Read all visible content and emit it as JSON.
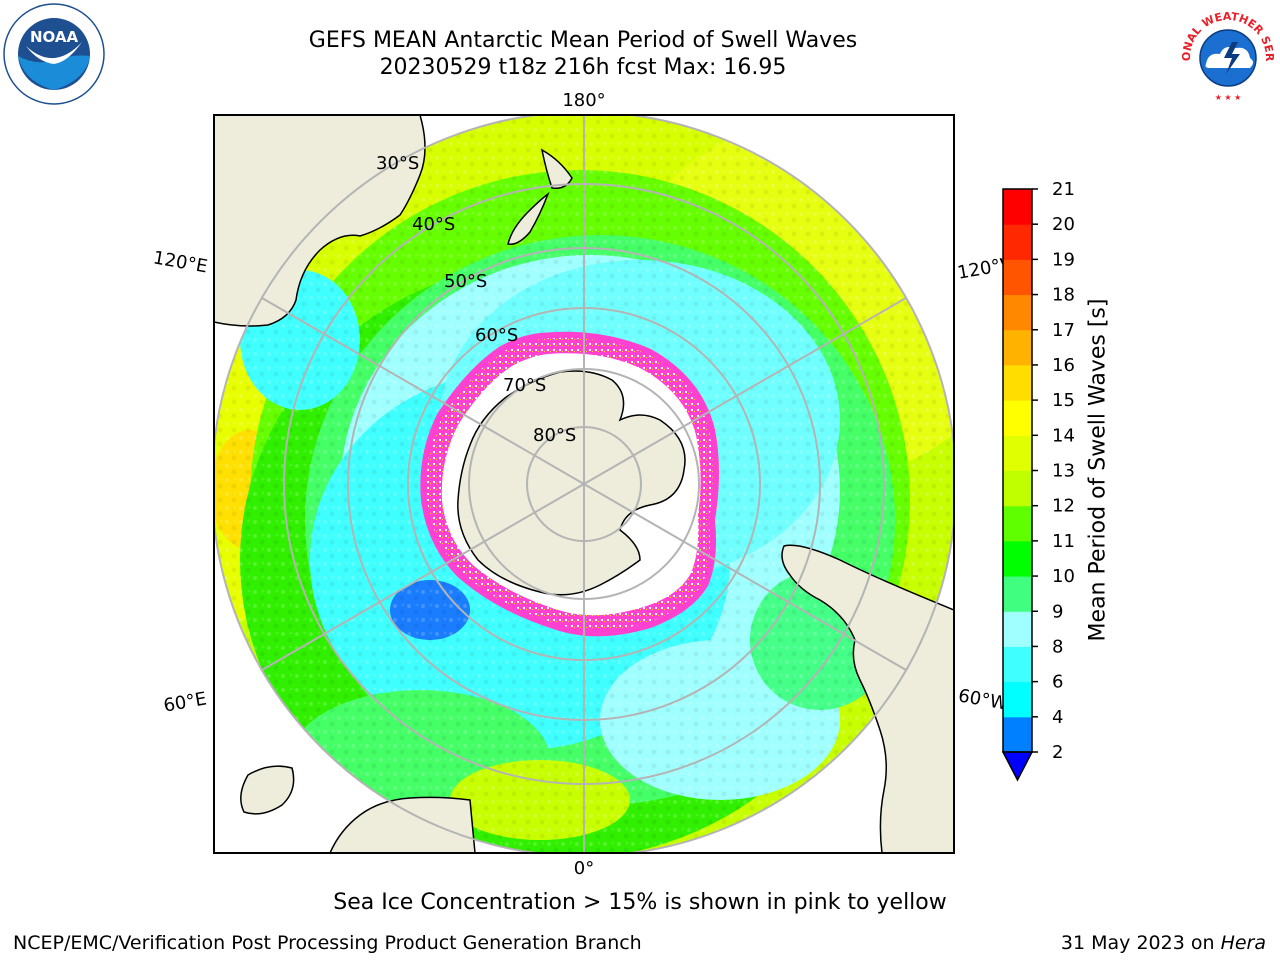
{
  "title": {
    "line1": "GEFS MEAN Antarctic Mean Period of Swell Waves",
    "line2": "20230529 t18z 216h fcst   Max: 16.95"
  },
  "map": {
    "projection": "south-polar-stereographic",
    "longitude_labels": [
      {
        "text": "180°"
      },
      {
        "text": "120°E"
      },
      {
        "text": "120°W"
      },
      {
        "text": "60°E"
      },
      {
        "text": "60°W"
      },
      {
        "text": "0°"
      }
    ],
    "latitude_labels": [
      "30°S",
      "40°S",
      "50°S",
      "60°S",
      "70°S",
      "80°S"
    ],
    "colors": {
      "land": "#eeecdb",
      "grid": "#b4b4b4",
      "sea_ice": "#ff40d0",
      "ice_interior": "#ffffff"
    }
  },
  "colorbar": {
    "label": "Mean Period of Swell Waves [s]",
    "ticks": [
      "2",
      "4",
      "6",
      "8",
      "9",
      "10",
      "11",
      "12",
      "13",
      "14",
      "15",
      "16",
      "17",
      "18",
      "19",
      "20",
      "21"
    ],
    "colors": [
      "#0020ff",
      "#0080ff",
      "#00ffff",
      "#40ffff",
      "#a0ffff",
      "#40ff80",
      "#00ff00",
      "#60ff00",
      "#c0ff00",
      "#e0ff00",
      "#ffff00",
      "#ffdd00",
      "#ffb300",
      "#ff8800",
      "#ff5500",
      "#ff2800",
      "#ff0000"
    ],
    "under_color": "#0000ff"
  },
  "logos": {
    "noaa": {
      "text": "NOAA",
      "ring_text": "NATIONAL OCEANIC AND ATMOSPHERIC ADMINISTRATION · U.S. DEPARTMENT OF COMMERCE"
    },
    "nws": {
      "ring_text": "NATIONAL WEATHER SERVICE"
    }
  },
  "notes": {
    "sea_ice": "Sea Ice Concentration > 15% is shown in pink to yellow"
  },
  "footer": {
    "left": "NCEP/EMC/Verification Post Processing Product Generation Branch",
    "date": "31 May 2023 on ",
    "machine": "Hera"
  }
}
